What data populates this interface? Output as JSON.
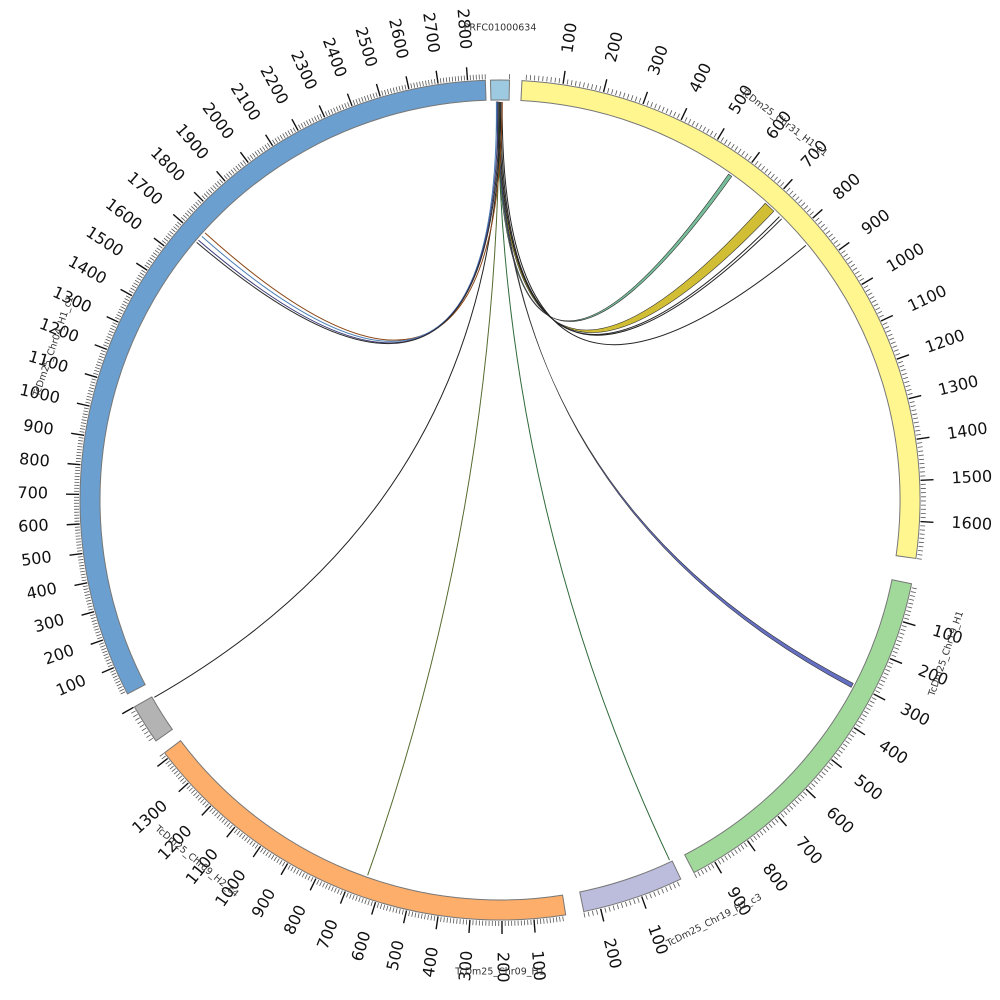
{
  "chart_data": {
    "type": "chord",
    "title": "",
    "segments": [
      {
        "name": "PRFC01000634",
        "length": 10,
        "color": "#9ecae1"
      },
      {
        "name": "TcDm25_Chr31_H1_c1",
        "length": 1690,
        "color": "#fff68f"
      },
      {
        "name": "TcDm25_Chr19_H1",
        "length": 960,
        "color": "#a1d99b"
      },
      {
        "name": "TcDm25_Chr19_H2_c3",
        "length": 240,
        "color": "#bcbddc"
      },
      {
        "name": "TcDm25_Chr09_H1",
        "length": 1420,
        "color": "#fdae6b"
      },
      {
        "name": "TcDm25_Chr09_H2_c4",
        "length": 100,
        "color": "#b3b3b3"
      },
      {
        "name": "TcDm25_Chr04_H1_c1",
        "length": 2860,
        "color": "#6a9fcf"
      }
    ],
    "tick_labels": {
      "TcDm25_Chr31_H1_c1": [
        "100",
        "200",
        "300",
        "400",
        "500",
        "600",
        "700",
        "800",
        "900",
        "1000",
        "1100",
        "1200",
        "1300",
        "1400",
        "1500",
        "1600"
      ],
      "TcDm25_Chr19_H1": [
        "100",
        "200",
        "300",
        "400",
        "500",
        "600",
        "700",
        "800",
        "900"
      ],
      "TcDm25_Chr19_H2_c3": [
        "100",
        "200"
      ],
      "TcDm25_Chr09_H1": [
        "100",
        "200",
        "300",
        "400",
        "500",
        "600",
        "700",
        "800",
        "900",
        "1000",
        "1100",
        "1200",
        "1300"
      ],
      "TcDm25_Chr09_H2_c4": [],
      "TcDm25_Chr04_H1_c1": [
        "100",
        "200",
        "300",
        "400",
        "500",
        "600",
        "700",
        "800",
        "900",
        "1000",
        "1100",
        "1200",
        "1300",
        "1400",
        "1500",
        "1600",
        "1700",
        "1800",
        "1900",
        "2000",
        "2100",
        "2200",
        "2300",
        "2400",
        "2500",
        "2600",
        "2700",
        "2800"
      ]
    },
    "links": [
      {
        "from": "PRFC01000634",
        "to": "TcDm25_Chr31_H1_c1",
        "to_start": 570,
        "to_end": 580,
        "color": "#5fb38a"
      },
      {
        "from": "PRFC01000634",
        "to": "TcDm25_Chr31_H1_c1",
        "to_start": 690,
        "to_end": 720,
        "color": "#c9b310"
      },
      {
        "from": "PRFC01000634",
        "to": "TcDm25_Chr31_H1_c1",
        "to_start": 740,
        "to_end": 742,
        "color": "#222222"
      },
      {
        "from": "PRFC01000634",
        "to": "TcDm25_Chr31_H1_c1",
        "to_start": 748,
        "to_end": 750,
        "color": "#222222"
      },
      {
        "from": "PRFC01000634",
        "to": "TcDm25_Chr31_H1_c1",
        "to_start": 840,
        "to_end": 842,
        "color": "#222222"
      },
      {
        "from": "PRFC01000634",
        "to": "TcDm25_Chr19_H1",
        "to_start": 300,
        "to_end": 312,
        "color": "#4b57b8"
      },
      {
        "from": "PRFC01000634",
        "to": "TcDm25_Chr19_H2_c3",
        "to_start": 5,
        "to_end": 6,
        "color": "#2f6a3a"
      },
      {
        "from": "PRFC01000634",
        "to": "TcDm25_Chr09_H1",
        "to_start": 651,
        "to_end": 652,
        "color": "#556b2f"
      },
      {
        "from": "PRFC01000634",
        "to": "TcDm25_Chr09_H2_c4",
        "to_start": 96,
        "to_end": 97,
        "color": "#222222"
      },
      {
        "from": "PRFC01000634",
        "to": "TcDm25_Chr04_H1_c1",
        "to_start": 1725,
        "to_end": 1728,
        "color": "#8b4513"
      },
      {
        "from": "PRFC01000634",
        "to": "TcDm25_Chr04_H1_c1",
        "to_start": 1708,
        "to_end": 1712,
        "color": "#4a7fb5"
      },
      {
        "from": "PRFC01000634",
        "to": "TcDm25_Chr04_H1_c1",
        "to_start": 1690,
        "to_end": 1694,
        "color": "#3a3a7a"
      },
      {
        "from": "PRFC01000634",
        "to": "TcDm25_Chr04_H1_c1",
        "to_start": 1680,
        "to_end": 1683,
        "color": "#2a2a2a"
      }
    ]
  }
}
